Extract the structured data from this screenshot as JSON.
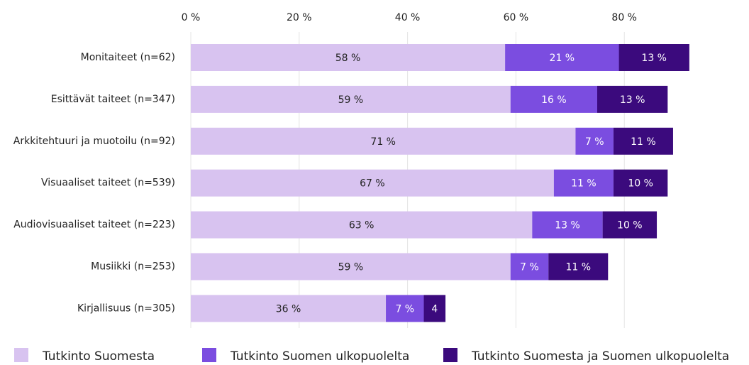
{
  "chart_data": {
    "type": "stacked-bar-horizontal",
    "categories": [
      "Monitaiteet (n=62)",
      "Esittävät taiteet (n=347)",
      "Arkkitehtuuri ja muotoilu (n=92)",
      "Visuaaliset taiteet (n=539)",
      "Audiovisuaaliset taiteet (n=223)",
      "Musiikki (n=253)",
      "Kirjallisuus (n=305)"
    ],
    "series": [
      {
        "name": "Tutkinto Suomesta",
        "color": "#d8c3f0",
        "label_color": "#222222",
        "values": [
          58,
          59,
          71,
          67,
          63,
          59,
          36
        ],
        "value_labels": [
          "58 %",
          "59 %",
          "71 %",
          "67 %",
          "63 %",
          "59 %",
          "36 %"
        ]
      },
      {
        "name": "Tutkinto Suomen ulkopuolelta",
        "color": "#7b4de0",
        "label_color": "#ffffff",
        "values": [
          21,
          16,
          7,
          11,
          13,
          7,
          7
        ],
        "value_labels": [
          "21 %",
          "16 %",
          "7 %",
          "11 %",
          "13 %",
          "7 %",
          "7 %"
        ]
      },
      {
        "name": "Tutkinto Suomesta ja Suomen ulkopuolelta",
        "color": "#3b0a7d",
        "label_color": "#ffffff",
        "values": [
          13,
          13,
          11,
          10,
          10,
          11,
          4
        ],
        "value_labels": [
          "13 %",
          "13 %",
          "11 %",
          "10 %",
          "10 %",
          "11 %",
          "4"
        ]
      }
    ],
    "xlim": [
      0,
      100
    ],
    "xticks": [
      {
        "value": 0,
        "label": "0 %"
      },
      {
        "value": 20,
        "label": "20 %"
      },
      {
        "value": 40,
        "label": "40 %"
      },
      {
        "value": 60,
        "label": "60 %"
      },
      {
        "value": 80,
        "label": "80 %"
      }
    ],
    "grid": true,
    "legend": "bottom"
  }
}
